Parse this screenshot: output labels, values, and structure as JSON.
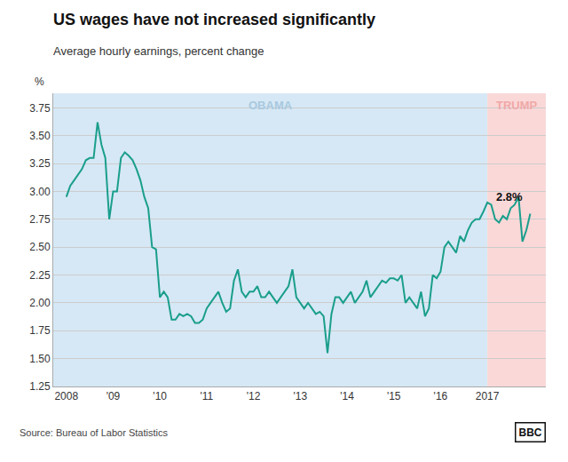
{
  "chart_data": {
    "type": "line",
    "title": "US wages have not increased significantly",
    "subtitle": "Average hourly earnings, percent change",
    "ylabel": "%",
    "source": "Source: Bureau of Labor Statistics",
    "logo": "BBC",
    "color": "#1a9e8c",
    "grid": true,
    "regions": [
      {
        "label": "OBAMA",
        "from": 2007.72,
        "to": 2017.0,
        "color": "#d6e8f5",
        "label_color": "#a8c8e0"
      },
      {
        "label": "TRUMP",
        "from": 2017.0,
        "to": 2018.25,
        "color": "#fad8d8",
        "label_color": "#f0a8a8"
      }
    ],
    "annotations": [
      {
        "text": "2.8%",
        "x": 2017.917,
        "y": 2.8
      }
    ],
    "xlim": [
      2007.72,
      2018.25
    ],
    "xticks": [
      2008,
      {
        "value": 2009,
        "label": "'09"
      },
      {
        "value": 2010,
        "label": "'10"
      },
      {
        "value": 2011,
        "label": "'11"
      },
      {
        "value": 2012,
        "label": "'12"
      },
      {
        "value": 2013,
        "label": "'13"
      },
      {
        "value": 2014,
        "label": "'14"
      },
      {
        "value": 2015,
        "label": "'15"
      },
      {
        "value": 2016,
        "label": "'16"
      },
      2017
    ],
    "ylim": [
      1.25,
      3.88
    ],
    "yticks": [
      1.25,
      {
        "value": 1.5,
        "label": "1.50"
      },
      1.75,
      {
        "value": 2.0,
        "label": "2.00"
      },
      2.25,
      {
        "value": 2.5,
        "label": "2.50"
      },
      2.75,
      {
        "value": 3.0,
        "label": "3.00"
      },
      3.25,
      {
        "value": 3.5,
        "label": "3.50"
      },
      3.75
    ],
    "x": [
      2008.0,
      2008.083,
      2008.167,
      2008.25,
      2008.333,
      2008.417,
      2008.5,
      2008.583,
      2008.667,
      2008.75,
      2008.833,
      2008.917,
      2009.0,
      2009.083,
      2009.167,
      2009.25,
      2009.333,
      2009.417,
      2009.5,
      2009.583,
      2009.667,
      2009.75,
      2009.833,
      2009.917,
      2010.0,
      2010.083,
      2010.167,
      2010.25,
      2010.333,
      2010.417,
      2010.5,
      2010.583,
      2010.667,
      2010.75,
      2010.833,
      2010.917,
      2011.0,
      2011.083,
      2011.167,
      2011.25,
      2011.333,
      2011.417,
      2011.5,
      2011.583,
      2011.667,
      2011.75,
      2011.833,
      2011.917,
      2012.0,
      2012.083,
      2012.167,
      2012.25,
      2012.333,
      2012.417,
      2012.5,
      2012.583,
      2012.667,
      2012.75,
      2012.833,
      2012.917,
      2013.0,
      2013.083,
      2013.167,
      2013.25,
      2013.333,
      2013.417,
      2013.5,
      2013.583,
      2013.667,
      2013.75,
      2013.833,
      2013.917,
      2014.0,
      2014.083,
      2014.167,
      2014.25,
      2014.333,
      2014.417,
      2014.5,
      2014.583,
      2014.667,
      2014.75,
      2014.833,
      2014.917,
      2015.0,
      2015.083,
      2015.167,
      2015.25,
      2015.333,
      2015.417,
      2015.5,
      2015.583,
      2015.667,
      2015.75,
      2015.833,
      2015.917,
      2016.0,
      2016.083,
      2016.167,
      2016.25,
      2016.333,
      2016.417,
      2016.5,
      2016.583,
      2016.667,
      2016.75,
      2016.833,
      2016.917,
      2017.0,
      2017.083,
      2017.167,
      2017.25,
      2017.333,
      2017.417,
      2017.5,
      2017.583,
      2017.667,
      2017.75,
      2017.833,
      2017.917
    ],
    "values": [
      2.95,
      3.05,
      3.1,
      3.15,
      3.2,
      3.28,
      3.3,
      3.3,
      3.62,
      3.42,
      3.3,
      2.75,
      3.0,
      3.0,
      3.3,
      3.35,
      3.32,
      3.28,
      3.2,
      3.1,
      2.95,
      2.85,
      2.5,
      2.48,
      2.05,
      2.1,
      2.05,
      1.85,
      1.85,
      1.9,
      1.88,
      1.9,
      1.88,
      1.82,
      1.82,
      1.85,
      1.95,
      2.0,
      2.05,
      2.1,
      2.0,
      1.92,
      1.95,
      2.2,
      2.3,
      2.1,
      2.05,
      2.1,
      2.1,
      2.15,
      2.05,
      2.05,
      2.1,
      2.05,
      2.0,
      2.05,
      2.1,
      2.15,
      2.3,
      2.05,
      2.0,
      1.95,
      2.0,
      1.95,
      1.9,
      1.92,
      1.88,
      1.55,
      1.9,
      2.05,
      2.05,
      2.0,
      2.05,
      2.1,
      2.0,
      2.05,
      2.1,
      2.2,
      2.05,
      2.1,
      2.15,
      2.2,
      2.18,
      2.22,
      2.22,
      2.2,
      2.25,
      2.0,
      2.05,
      2.0,
      1.95,
      2.1,
      1.88,
      1.95,
      2.25,
      2.22,
      2.28,
      2.5,
      2.55,
      2.5,
      2.45,
      2.6,
      2.55,
      2.65,
      2.72,
      2.75,
      2.75,
      2.82,
      2.9,
      2.88,
      2.75,
      2.72,
      2.78,
      2.75,
      2.85,
      2.88,
      2.95,
      2.55,
      2.65,
      2.8
    ]
  }
}
